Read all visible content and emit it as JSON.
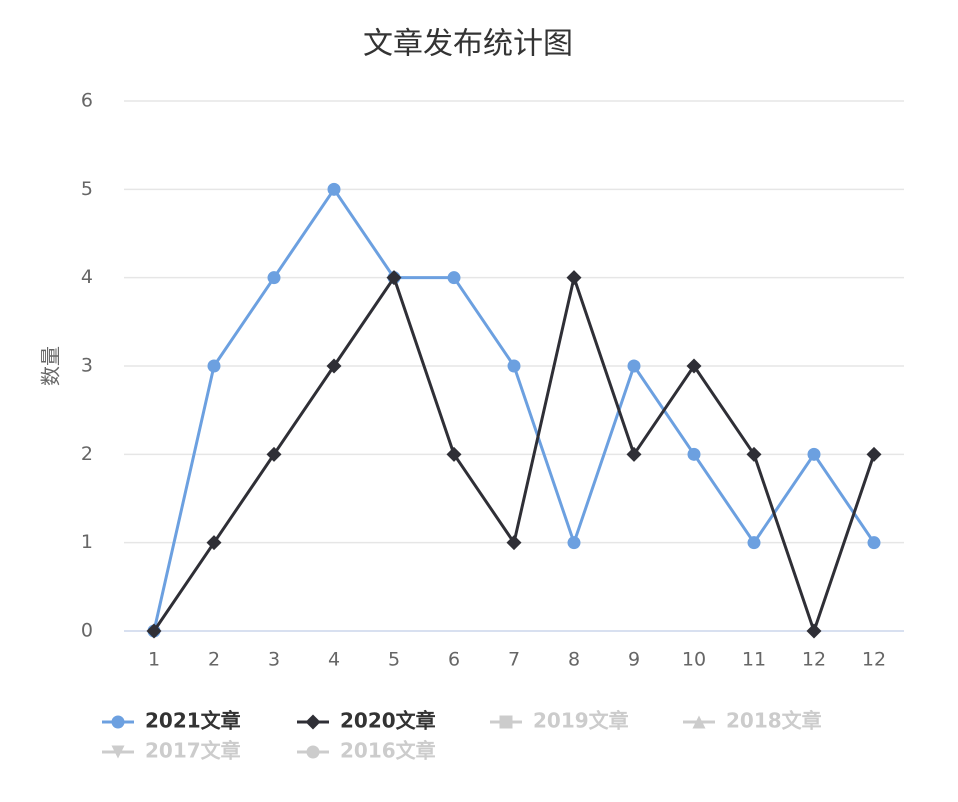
{
  "chart_data": {
    "type": "line",
    "title": "文章发布统计图",
    "y_label": "数量",
    "categories": [
      "1",
      "2",
      "3",
      "4",
      "5",
      "6",
      "7",
      "8",
      "9",
      "10",
      "11",
      "12",
      "12"
    ],
    "series": [
      {
        "name": "2021文章",
        "color": "#6ca0e0",
        "marker": "circle",
        "visible": true,
        "values": [
          0,
          3,
          4,
          5,
          4,
          4,
          3,
          1,
          3,
          2,
          1,
          2,
          1
        ]
      },
      {
        "name": "2020文章",
        "color": "#2f2f36",
        "marker": "diamond",
        "visible": true,
        "values": [
          0,
          1,
          2,
          3,
          4,
          2,
          1,
          4,
          2,
          3,
          2,
          0,
          2
        ]
      },
      {
        "name": "2019文章",
        "color": "#cccccc",
        "marker": "square",
        "visible": false
      },
      {
        "name": "2018文章",
        "color": "#cccccc",
        "marker": "triangle",
        "visible": false
      },
      {
        "name": "2017文章",
        "color": "#cccccc",
        "marker": "triangle-down",
        "visible": false
      },
      {
        "name": "2016文章",
        "color": "#cccccc",
        "marker": "circle",
        "visible": false
      }
    ],
    "ylim": [
      0,
      6
    ],
    "yticks": [
      0,
      1,
      2,
      3,
      4,
      5,
      6
    ],
    "grid": true
  }
}
